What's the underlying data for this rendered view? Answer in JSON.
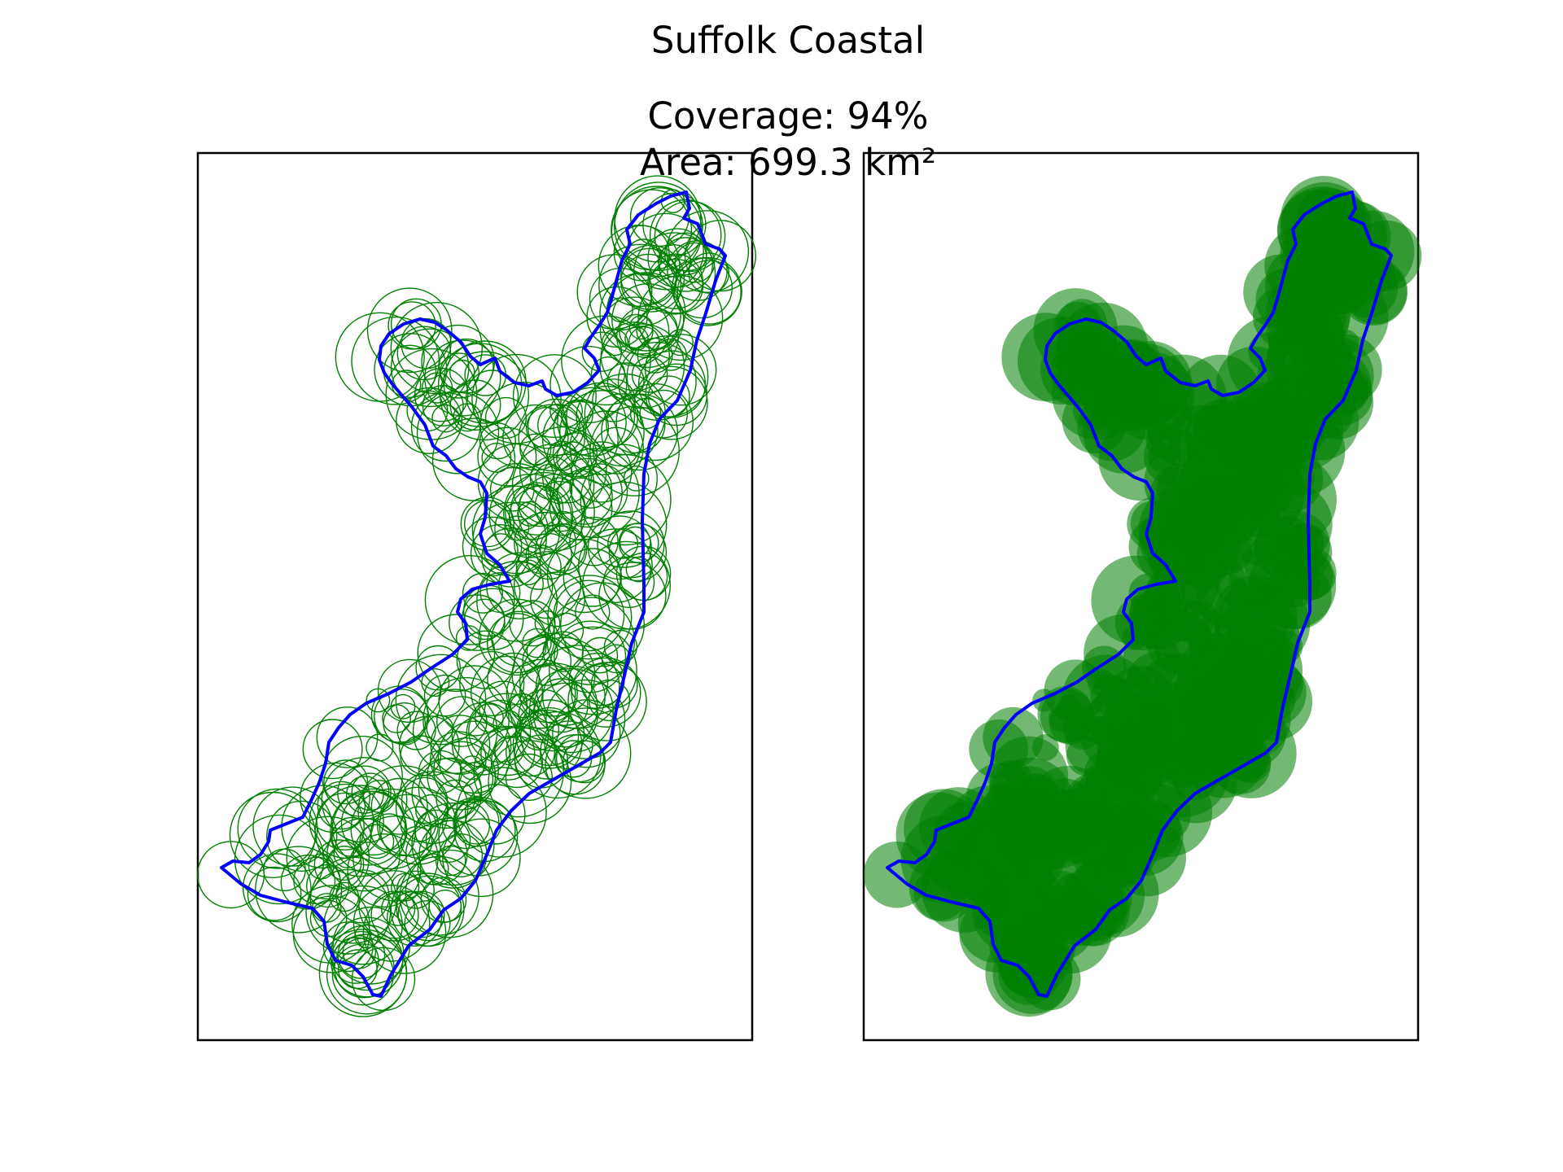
{
  "figure": {
    "title": "Suffolk Coastal",
    "subtitle_line1": "Coverage: 94%",
    "subtitle_line2": "Area: 699.3 km²"
  },
  "colors": {
    "boundary": "#0000ff",
    "circle": "#008000",
    "frame": "#000000",
    "background": "#ffffff"
  },
  "panels": [
    {
      "name": "outline-panel",
      "style": "circle outlines"
    },
    {
      "name": "filled-panel",
      "style": "filled translucent circles"
    }
  ]
}
